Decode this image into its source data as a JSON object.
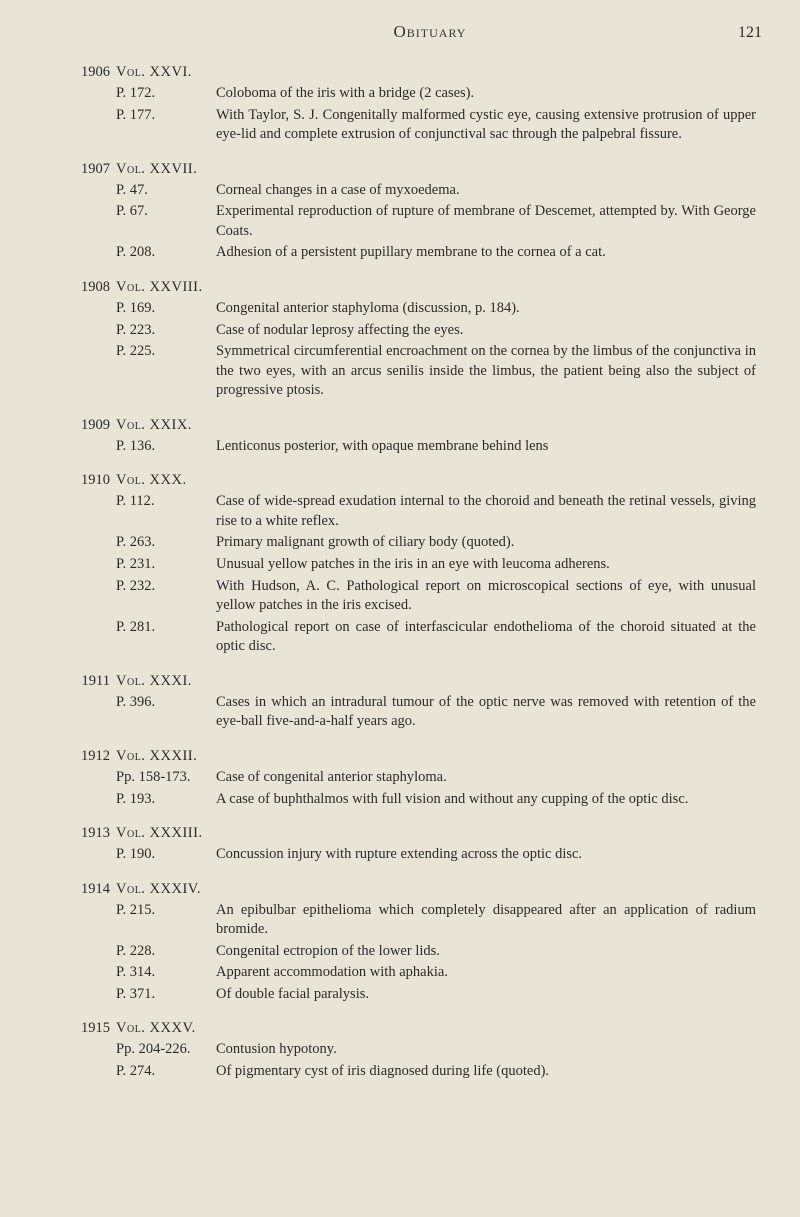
{
  "header": {
    "title": "Obituary",
    "page_number": "121"
  },
  "volumes": [
    {
      "year": "1906",
      "title": "Vol. XXVI.",
      "entries": [
        {
          "pp": "P. 172.",
          "desc": "Coloboma of the iris with a bridge (2 cases)."
        },
        {
          "pp": "P. 177.",
          "desc": "With Taylor, S. J. Congenitally malformed cystic eye, causing extensive protrusion of upper eye-lid and complete extrusion of conjunctival sac through the palpebral fissure."
        }
      ]
    },
    {
      "year": "1907",
      "title": "Vol. XXVII.",
      "entries": [
        {
          "pp": "P. 47.",
          "desc": "Corneal changes in a case of myxoedema."
        },
        {
          "pp": "P. 67.",
          "desc": "Experimental reproduction of rupture of membrane of Des­cemet, attempted by. With George Coats."
        },
        {
          "pp": "P. 208.",
          "desc": "Adhesion of a persistent pupillary membrane to the cornea of a cat."
        }
      ]
    },
    {
      "year": "1908",
      "title": "Vol. XXVIII.",
      "entries": [
        {
          "pp": "P. 169.",
          "desc": "Congenital anterior staphyloma (discussion, p. 184)."
        },
        {
          "pp": "P. 223.",
          "desc": "Case of nodular leprosy affecting the eyes."
        },
        {
          "pp": "P. 225.",
          "desc": "Symmetrical circumferential encroachment on the cornea by the limbus of the conjunctiva in the two eyes, with an arcus senilis inside the limbus, the patient being also the subject of progressive ptosis."
        }
      ]
    },
    {
      "year": "1909",
      "title": "Vol. XXIX.",
      "entries": [
        {
          "pp": "P. 136.",
          "desc": "Lenticonus posterior, with opaque membrane behind lens"
        }
      ]
    },
    {
      "year": "1910",
      "title": "Vol. XXX.",
      "entries": [
        {
          "pp": "P. 112.",
          "desc": "Case of wide-spread exudation internal to the choroid and beneath the retinal vessels, giving rise to a white reflex."
        },
        {
          "pp": "P. 263.",
          "desc": "Primary malignant growth of ciliary body (quoted)."
        },
        {
          "pp": "P. 231.",
          "desc": "Unusual yellow patches in the iris in an eye with leucoma adherens."
        },
        {
          "pp": "P. 232.",
          "desc": "With Hudson, A. C. Pathological report on microscopical sections of eye, with unusual yellow patches in the iris excised."
        },
        {
          "pp": "P. 281.",
          "desc": "Pathological report on case of interfascicular endothelioma of the choroid situated at the optic disc."
        }
      ]
    },
    {
      "year": "1911",
      "title": "Vol. XXXI.",
      "entries": [
        {
          "pp": "P. 396.",
          "desc": "Cases in which an intradural tumour of the optic nerve was removed with retention of the eye-ball five-and-a-half years ago."
        }
      ]
    },
    {
      "year": "1912",
      "title": "Vol. XXXII.",
      "entries": [
        {
          "pp": "Pp. 158-173.",
          "desc": "Case of congenital anterior staphyloma."
        },
        {
          "pp": "P. 193.",
          "desc": "A case of buphthalmos with full vision and without any cupping of the optic disc."
        }
      ]
    },
    {
      "year": "1913",
      "title": "Vol. XXXIII.",
      "entries": [
        {
          "pp": "P. 190.",
          "desc": "Concussion injury with rupture extending across the optic disc."
        }
      ]
    },
    {
      "year": "1914",
      "title": "Vol. XXXIV.",
      "entries": [
        {
          "pp": "P. 215.",
          "desc": "An epibulbar epithelioma which completely disappeared after an application of radium bromide."
        },
        {
          "pp": "P. 228.",
          "desc": "Congenital ectropion of the lower lids."
        },
        {
          "pp": "P. 314.",
          "desc": "Apparent accommodation with aphakia."
        },
        {
          "pp": "P. 371.",
          "desc": "Of double facial paralysis."
        }
      ]
    },
    {
      "year": "1915",
      "title": "Vol. XXXV.",
      "entries": [
        {
          "pp": "Pp. 204-226.",
          "desc": "Contusion hypotony."
        },
        {
          "pp": "P. 274.",
          "desc": "Of pigmentary cyst of iris diagnosed during life (quoted)."
        }
      ]
    }
  ]
}
